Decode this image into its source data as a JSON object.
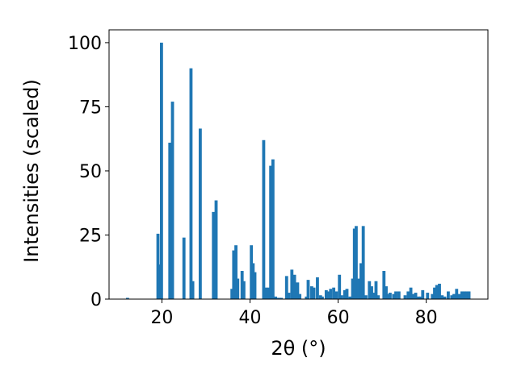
{
  "chart_data": {
    "type": "bar",
    "xlabel": "2θ (°)",
    "ylabel": "Intensities (scaled)",
    "xlim": [
      8,
      94
    ],
    "ylim": [
      0,
      105
    ],
    "xticks": [
      20,
      40,
      60,
      80
    ],
    "yticks": [
      0,
      25,
      50,
      75,
      100
    ],
    "grid": false,
    "bar_color": "#1f77b4",
    "bar_width": 0.7,
    "x": [
      12.2,
      19.1,
      19.5,
      19.9,
      21.8,
      22.4,
      25.0,
      26.6,
      27.0,
      28.7,
      31.7,
      32.3,
      35.9,
      36.3,
      36.8,
      37.2,
      38.2,
      38.6,
      40.3,
      40.7,
      41.1,
      43.1,
      43.6,
      44.2,
      44.7,
      45.2,
      45.8,
      46.2,
      46.7,
      47.1,
      48.3,
      48.8,
      49.5,
      50.1,
      50.8,
      51.3,
      52.8,
      53.2,
      54.0,
      54.5,
      55.3,
      56.0,
      56.4,
      57.3,
      57.8,
      58.3,
      59.0,
      59.6,
      60.3,
      60.8,
      61.5,
      62.0,
      62.7,
      63.3,
      63.7,
      64.1,
      64.6,
      65.2,
      65.7,
      66.3,
      67.1,
      67.6,
      68.1,
      68.6,
      69.1,
      70.4,
      70.9,
      71.3,
      71.8,
      72.6,
      73.1,
      73.8,
      75.2,
      75.9,
      76.5,
      77.1,
      77.6,
      78.2,
      78.7,
      79.2,
      80.3,
      81.4,
      81.9,
      82.4,
      83.0,
      83.6,
      84.2,
      85.0,
      85.8,
      86.3,
      86.9,
      87.5,
      88.1,
      88.7,
      89.2,
      89.7
    ],
    "values": [
      0.5,
      25.5,
      13.5,
      100,
      61,
      77,
      24,
      90,
      7,
      66.5,
      34,
      38.5,
      4,
      19,
      21,
      8,
      11,
      7,
      21,
      14,
      10.5,
      62,
      4.5,
      4.5,
      52,
      54.5,
      1,
      0.5,
      0.5,
      0.5,
      9,
      2.5,
      11.5,
      9.5,
      6.5,
      2,
      1,
      7.5,
      5,
      4.5,
      8.5,
      1.5,
      1,
      3.5,
      3,
      4,
      4.5,
      3,
      9.5,
      1.5,
      3.5,
      4,
      1,
      8,
      27.5,
      28.5,
      8,
      14,
      28.5,
      1.5,
      7,
      5,
      2.5,
      7,
      1.5,
      11,
      5,
      2,
      2.5,
      2,
      3,
      3,
      1.5,
      3,
      4.5,
      2,
      2.5,
      1,
      1,
      3.5,
      2.5,
      2,
      4.5,
      5.5,
      6,
      1.5,
      1,
      3,
      1.5,
      2,
      4,
      2,
      3,
      3,
      3,
      3
    ]
  }
}
